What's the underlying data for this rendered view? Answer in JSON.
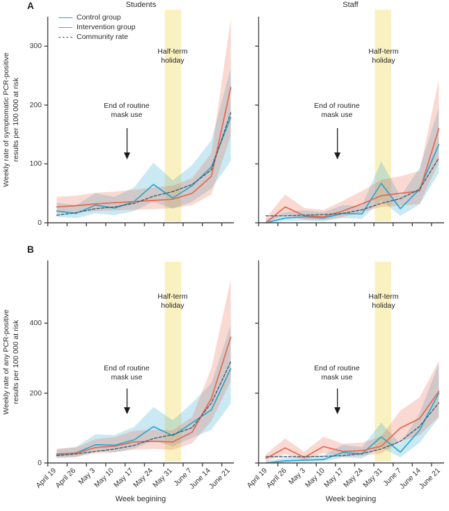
{
  "figure": {
    "panel_letters": [
      "A",
      "B"
    ],
    "annotations": {
      "halfterm_lines": [
        "Half-term",
        "holiday"
      ],
      "mask_lines": [
        "End of routine",
        "mask use"
      ]
    }
  },
  "colors": {
    "control": "#2AA7CE",
    "intervention": "#E8664C",
    "community": "#3E5E70",
    "holiday_band": "#FAF1C0",
    "axis": "#454545",
    "arrow": "#1a1a1a",
    "text": "#2b2b2b"
  },
  "chart_data": [
    {
      "id": "A-Students",
      "type": "line",
      "title": "Students",
      "xlabel": "",
      "ylabel_lines": [
        "Weekly rate of symptomatic PCR-positive",
        "results per 100 000 at risk"
      ],
      "ylim": [
        0,
        350
      ],
      "yticks": [
        0,
        100,
        200,
        300
      ],
      "categories": [
        "April 19",
        "April 26",
        "May 3",
        "May 10",
        "May 17",
        "May 24",
        "May 31",
        "June 7",
        "June 14",
        "June 21"
      ],
      "band_annotation": "Half-term holiday",
      "band_between": [
        "May 31",
        "June 7"
      ],
      "arrow_annotation": "End of routine mask use",
      "series": [
        {
          "name": "Control group",
          "style": "solid",
          "color": "#2AA7CE",
          "values": [
            20,
            16,
            30,
            25,
            36,
            65,
            42,
            63,
            95,
            179
          ],
          "ci_lower": [
            10,
            8,
            16,
            13,
            20,
            36,
            24,
            36,
            58,
            105
          ],
          "ci_upper": [
            34,
            30,
            50,
            44,
            60,
            102,
            72,
            98,
            140,
            262
          ]
        },
        {
          "name": "Intervention group",
          "style": "solid",
          "color": "#E8664C",
          "values": [
            27,
            29,
            32,
            34,
            36,
            38,
            40,
            50,
            79,
            230
          ],
          "ci_lower": [
            16,
            18,
            20,
            21,
            22,
            23,
            25,
            30,
            48,
            148
          ],
          "ci_upper": [
            44,
            46,
            51,
            53,
            56,
            60,
            63,
            76,
            118,
            345
          ]
        },
        {
          "name": "Community rate",
          "style": "dashed",
          "color": "#3E5E70",
          "values": [
            13,
            17,
            24,
            27,
            33,
            45,
            53,
            65,
            90,
            187
          ]
        }
      ]
    },
    {
      "id": "A-Staff",
      "type": "line",
      "title": "Staff",
      "xlabel": "",
      "ylim": [
        0,
        350
      ],
      "yticks": [
        0,
        100,
        200,
        300
      ],
      "categories": [
        "April 19",
        "April 26",
        "May 3",
        "May 10",
        "May 17",
        "May 24",
        "May 31",
        "June 7",
        "June 14",
        "June 21"
      ],
      "band_annotation": "Half-term holiday",
      "band_between": [
        "May 31",
        "June 7"
      ],
      "arrow_annotation": "End of routine mask use",
      "series": [
        {
          "name": "Control group",
          "style": "solid",
          "color": "#2AA7CE",
          "values": [
            0,
            8,
            10,
            8,
            16,
            15,
            67,
            24,
            57,
            133
          ],
          "ci_lower": [
            0,
            3,
            4,
            3,
            8,
            7,
            38,
            12,
            31,
            85
          ],
          "ci_upper": [
            6,
            18,
            21,
            18,
            30,
            29,
            104,
            45,
            93,
            195
          ]
        },
        {
          "name": "Intervention group",
          "style": "solid",
          "color": "#E8664C",
          "values": [
            0,
            27,
            12,
            10,
            20,
            32,
            46,
            50,
            54,
            160
          ],
          "ci_lower": [
            0,
            14,
            5,
            4,
            10,
            18,
            27,
            29,
            32,
            103
          ],
          "ci_upper": [
            8,
            48,
            25,
            22,
            37,
            54,
            73,
            79,
            88,
            243
          ]
        },
        {
          "name": "Community rate",
          "style": "dashed",
          "color": "#3E5E70",
          "values": [
            12,
            12,
            13,
            14,
            16,
            22,
            33,
            41,
            57,
            110
          ]
        }
      ]
    },
    {
      "id": "B-Students",
      "type": "line",
      "title": "",
      "xlabel": "Week begining",
      "ylabel_lines": [
        "Weekly rate of any PCR-positive",
        "results per 100 000 at risk"
      ],
      "ylim": [
        0,
        580
      ],
      "yticks": [
        0,
        200,
        400
      ],
      "categories": [
        "April 19",
        "April 26",
        "May 3",
        "May 10",
        "May 17",
        "May 24",
        "May 31",
        "June 7",
        "June 14",
        "June 21"
      ],
      "band_annotation": "Half-term holiday",
      "band_between": [
        "May 31",
        "June 7"
      ],
      "arrow_annotation": "End of routine mask use",
      "series": [
        {
          "name": "Control group",
          "style": "solid",
          "color": "#2AA7CE",
          "values": [
            24,
            29,
            52,
            51,
            66,
            104,
            78,
            115,
            152,
            270
          ],
          "ci_lower": [
            14,
            17,
            32,
            31,
            41,
            64,
            48,
            72,
            95,
            170
          ],
          "ci_upper": [
            38,
            46,
            82,
            80,
            103,
            160,
            122,
            172,
            228,
            395
          ]
        },
        {
          "name": "Intervention group",
          "style": "solid",
          "color": "#E8664C",
          "values": [
            26,
            28,
            44,
            48,
            60,
            62,
            60,
            88,
            185,
            360
          ],
          "ci_lower": [
            16,
            17,
            28,
            30,
            38,
            40,
            38,
            56,
            120,
            235
          ],
          "ci_upper": [
            41,
            44,
            68,
            74,
            92,
            95,
            93,
            132,
            272,
            525
          ]
        },
        {
          "name": "Community rate",
          "style": "dashed",
          "color": "#3E5E70",
          "values": [
            21,
            26,
            33,
            40,
            50,
            70,
            81,
            101,
            172,
            290
          ]
        }
      ]
    },
    {
      "id": "B-Staff",
      "type": "line",
      "title": "",
      "xlabel": "Week begining",
      "ylim": [
        0,
        580
      ],
      "yticks": [
        0,
        200,
        400
      ],
      "categories": [
        "April 19",
        "April 26",
        "May 3",
        "May 10",
        "May 17",
        "May 24",
        "May 31",
        "June 7",
        "June 14",
        "June 21"
      ],
      "band_annotation": "Half-term holiday",
      "band_between": [
        "May 31",
        "June 7"
      ],
      "arrow_annotation": "End of routine mask use",
      "series": [
        {
          "name": "Control group",
          "style": "solid",
          "color": "#2AA7CE",
          "values": [
            0,
            6,
            8,
            10,
            30,
            26,
            75,
            31,
            94,
            200
          ],
          "ci_lower": [
            0,
            2,
            3,
            4,
            16,
            13,
            45,
            16,
            58,
            130
          ],
          "ci_upper": [
            7,
            14,
            18,
            22,
            52,
            45,
            115,
            55,
            142,
            285
          ]
        },
        {
          "name": "Intervention group",
          "style": "solid",
          "color": "#E8664C",
          "values": [
            13,
            43,
            16,
            47,
            33,
            35,
            48,
            100,
            127,
            205
          ],
          "ci_lower": [
            5,
            25,
            8,
            28,
            18,
            20,
            28,
            62,
            80,
            132
          ],
          "ci_upper": [
            25,
            70,
            32,
            75,
            55,
            58,
            76,
            150,
            188,
            292
          ]
        },
        {
          "name": "Community rate",
          "style": "dashed",
          "color": "#3E5E70",
          "values": [
            18,
            18,
            18,
            19,
            21,
            27,
            40,
            62,
            105,
            172
          ]
        }
      ]
    }
  ]
}
